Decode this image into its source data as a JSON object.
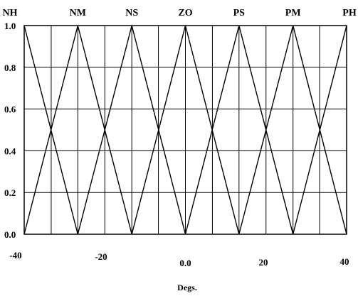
{
  "chart_data": {
    "type": "line",
    "xlabel": "Degs.",
    "ylabel": "",
    "xlim": [
      -40,
      40
    ],
    "ylim": [
      0,
      1
    ],
    "grid": true,
    "x_ticks": [
      {
        "value": -40,
        "label": "-40"
      },
      {
        "value": -20,
        "label": "-20"
      },
      {
        "value": 0,
        "label": "0.0"
      },
      {
        "value": 20,
        "label": "20"
      },
      {
        "value": 40,
        "label": "40"
      }
    ],
    "y_ticks": [
      {
        "value": 0,
        "label": "0.0"
      },
      {
        "value": 0.2,
        "label": "0.2"
      },
      {
        "value": 0.4,
        "label": "0.4"
      },
      {
        "value": 0.6,
        "label": "0.6"
      },
      {
        "value": 0.8,
        "label": "0.8"
      },
      {
        "value": 1.0,
        "label": "1.0"
      }
    ],
    "vertical_gridlines_x": [
      -33.3,
      -26.7,
      -20,
      -13.3,
      -6.7,
      0,
      6.7,
      13.3,
      20,
      26.7,
      33.3
    ],
    "series": [
      {
        "name": "NH",
        "x": [
          -40,
          -26.7
        ],
        "y": [
          1,
          0
        ]
      },
      {
        "name": "NM",
        "x": [
          -40,
          -26.7,
          -13.3
        ],
        "y": [
          0,
          1,
          0
        ]
      },
      {
        "name": "NS",
        "x": [
          -26.7,
          -13.3,
          0
        ],
        "y": [
          0,
          1,
          0
        ]
      },
      {
        "name": "ZO",
        "x": [
          -13.3,
          0,
          13.3
        ],
        "y": [
          0,
          1,
          0
        ]
      },
      {
        "name": "PS",
        "x": [
          0,
          13.3,
          26.7
        ],
        "y": [
          0,
          1,
          0
        ]
      },
      {
        "name": "PM",
        "x": [
          13.3,
          26.7,
          40
        ],
        "y": [
          0,
          1,
          0
        ]
      },
      {
        "name": "PH",
        "x": [
          26.7,
          40
        ],
        "y": [
          0,
          1
        ]
      }
    ],
    "label_positions_x": [
      -40,
      -26.7,
      -13.3,
      0,
      13.3,
      26.7,
      40
    ]
  }
}
